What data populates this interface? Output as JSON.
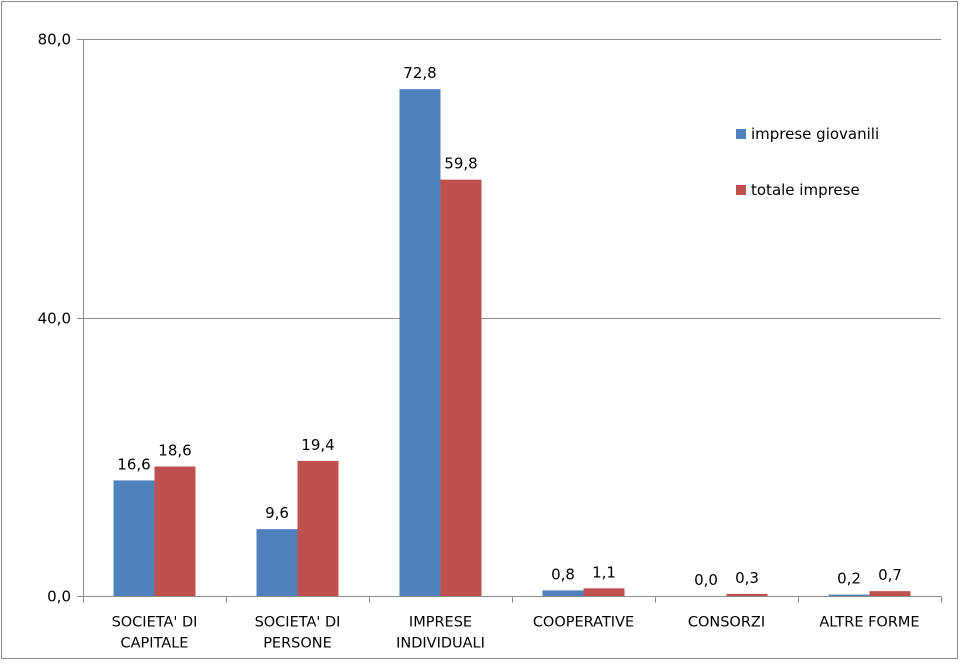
{
  "chart_data": {
    "type": "bar",
    "categories": [
      [
        "SOCIETA' DI",
        "CAPITALE"
      ],
      [
        "SOCIETA' DI",
        "PERSONE"
      ],
      [
        "IMPRESE",
        "INDIVIDUALI"
      ],
      [
        "COOPERATIVE"
      ],
      [
        "CONSORZI"
      ],
      [
        "ALTRE FORME"
      ]
    ],
    "series": [
      {
        "name": "imprese giovanili",
        "color": "#4f81bd",
        "values": [
          16.6,
          9.6,
          72.8,
          0.8,
          0.0,
          0.2
        ],
        "labels": [
          "16,6",
          "9,6",
          "72,8",
          "0,8",
          "0,0",
          "0,2"
        ]
      },
      {
        "name": "totale imprese",
        "color": "#c0504d",
        "values": [
          18.6,
          19.4,
          59.8,
          1.1,
          0.3,
          0.7
        ],
        "labels": [
          "18,6",
          "19,4",
          "59,8",
          "1,1",
          "0,3",
          "0,7"
        ]
      }
    ],
    "ylim": [
      0,
      80
    ],
    "yticks": [
      0,
      40,
      80
    ],
    "ytick_labels": [
      "0,0",
      "40,0",
      "80,0"
    ],
    "grid": true,
    "legend_position": "right"
  }
}
